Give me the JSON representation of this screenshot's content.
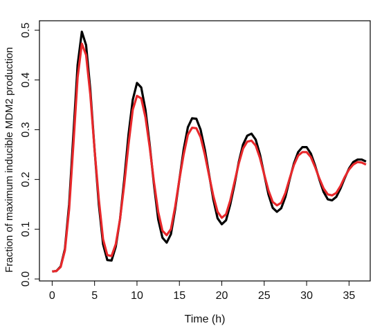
{
  "chart_data": {
    "type": "line",
    "x_label": "Time (h)",
    "y_label": "Fraction of maximum inducible MDM2 production",
    "x": [
      0,
      0.5,
      1,
      1.5,
      2,
      2.5,
      3,
      3.5,
      4,
      4.5,
      5,
      5.5,
      6,
      6.5,
      7,
      7.5,
      8,
      8.5,
      9,
      9.5,
      10,
      10.5,
      11,
      11.5,
      12,
      12.5,
      13,
      13.5,
      14,
      14.5,
      15,
      15.5,
      16,
      16.5,
      17,
      17.5,
      18,
      18.5,
      19,
      19.5,
      20,
      20.5,
      21,
      21.5,
      22,
      22.5,
      23,
      23.5,
      24,
      24.5,
      25,
      25.5,
      26,
      26.5,
      27,
      27.5,
      28,
      28.5,
      29,
      29.5,
      30,
      30.5,
      31,
      31.5,
      32,
      32.5,
      33,
      33.5,
      34,
      34.5,
      35,
      35.5,
      36,
      36.5,
      37
    ],
    "series": [
      {
        "color": "#000000",
        "values": [
          0.015,
          0.016,
          0.025,
          0.06,
          0.15,
          0.29,
          0.43,
          0.497,
          0.47,
          0.38,
          0.26,
          0.15,
          0.07,
          0.038,
          0.037,
          0.065,
          0.12,
          0.2,
          0.29,
          0.36,
          0.394,
          0.385,
          0.34,
          0.27,
          0.19,
          0.12,
          0.083,
          0.073,
          0.09,
          0.14,
          0.2,
          0.26,
          0.305,
          0.323,
          0.322,
          0.3,
          0.26,
          0.21,
          0.16,
          0.122,
          0.11,
          0.118,
          0.15,
          0.19,
          0.235,
          0.27,
          0.288,
          0.292,
          0.28,
          0.25,
          0.21,
          0.17,
          0.143,
          0.135,
          0.142,
          0.165,
          0.2,
          0.232,
          0.255,
          0.265,
          0.265,
          0.252,
          0.228,
          0.2,
          0.175,
          0.16,
          0.158,
          0.165,
          0.182,
          0.203,
          0.222,
          0.235,
          0.24,
          0.24,
          0.236
        ]
      },
      {
        "color": "#e8282b",
        "values": [
          0.015,
          0.016,
          0.024,
          0.057,
          0.14,
          0.27,
          0.405,
          0.473,
          0.45,
          0.37,
          0.26,
          0.16,
          0.08,
          0.048,
          0.046,
          0.07,
          0.12,
          0.19,
          0.27,
          0.34,
          0.368,
          0.363,
          0.325,
          0.265,
          0.195,
          0.135,
          0.097,
          0.088,
          0.1,
          0.145,
          0.2,
          0.25,
          0.29,
          0.304,
          0.303,
          0.285,
          0.25,
          0.208,
          0.167,
          0.135,
          0.123,
          0.13,
          0.158,
          0.195,
          0.232,
          0.262,
          0.276,
          0.278,
          0.268,
          0.243,
          0.21,
          0.178,
          0.155,
          0.148,
          0.153,
          0.173,
          0.202,
          0.229,
          0.248,
          0.255,
          0.255,
          0.245,
          0.225,
          0.202,
          0.182,
          0.17,
          0.168,
          0.173,
          0.187,
          0.205,
          0.22,
          0.23,
          0.235,
          0.234,
          0.23
        ]
      }
    ],
    "xlim": [
      -1.5,
      37.5
    ],
    "xticks": [
      0,
      5,
      10,
      15,
      20,
      25,
      30,
      35
    ],
    "ylim": [
      -0.004,
      0.519
    ],
    "yticks": [
      {
        "value": 0,
        "label": "0.0"
      },
      0.1,
      0.2,
      0.3,
      0.4,
      0.5
    ]
  }
}
